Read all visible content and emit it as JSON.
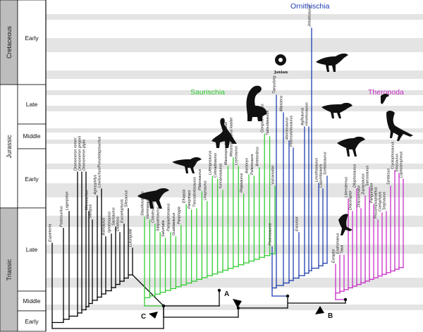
{
  "timescale": {
    "periods": [
      "Cretaceous",
      "Jurassic",
      "Triassic"
    ],
    "epochs": [
      "Early",
      "Late",
      "Middle",
      "Early",
      "Late",
      "Middle",
      "Early"
    ]
  },
  "clades": {
    "saurischia": "Saurischia",
    "ornithischia": "Ornithischia",
    "theropoda": "Theropoda"
  },
  "nodes": {
    "a": "A",
    "b": "B",
    "c": "C"
  },
  "image_text": {
    "jaxian": "Jaxian"
  },
  "colors": {
    "basal": "#000000",
    "saurischia": "#33cc33",
    "ornithischia": "#1f3fb0",
    "theropoda": "#c82ec8",
    "band": "#e4e4e4",
    "scale_gray": "#bdbdbd"
  },
  "taxa": {
    "basal": [
      "Euparkeria",
      "Postosuchus",
      "Lagerpeton",
      "Dromomeron romeri",
      "Dromomeron gregorii",
      "Dromomeron gigas",
      "Marasuchus",
      "Saltopus",
      "Agnosphitys",
      "Lewisuchus/Pseudolagosuchus",
      "Asilisaurus",
      "Ignotosaurus",
      "Sacisaurus",
      "Diodorus",
      "Eucoelophysis",
      "Silesaurus",
      "Lutungutali"
    ],
    "saurischia": [
      "Staurikosaurus",
      "Herrerasaurus",
      "Chindesaurus",
      "Sanjuansaurus",
      "Saturnalia",
      "Pampadromaeus",
      "Guaibasaurus",
      "Panphagia",
      "Efraasia",
      "Pantydraco",
      "Thecodontosaurus",
      "Plateosaurus",
      "Unaysaurus",
      "Lufengosaurus",
      "Coloradisaurus",
      "Yunnanosaurus",
      "Massospondylus carinatus",
      "Massospondylus kaalae",
      "Leyesaurus",
      "Riojasaurus",
      "Aardonyx",
      "Pulanesaura",
      "Antetonitrus",
      "Gongxianosaurus",
      "Tazoudasaurus",
      "Vulcanodon"
    ],
    "ornithischia": [
      "Pisanosaurus",
      "Tianyulong",
      "Manidens",
      "Abrictosaurus",
      "Heterodontosaurus",
      "Eocursor",
      "Agilisaurus",
      "Hexinlusaurus",
      "Jeholosaurus",
      "Lesothosaurus",
      "Laquintasaura",
      "Scelidosaurus"
    ],
    "theropoda": [
      "Eoraptor",
      "Eodromaeus",
      "Tawa",
      "Liliensternus",
      "Dracoraptor",
      "Dilophosaurus",
      "Dracovenator",
      "Zupaysaurus",
      "Sarcosaurus",
      "Panguraptor",
      "Procompsognathus",
      "Coelophysis",
      "Segisaurus",
      "Syntarsus",
      "Cryolophosaurus",
      "Sinosaurus",
      "Lophostropheus"
    ]
  },
  "silhouettes": [
    "sauropodomorph-silhouette",
    "sauropodomorph-silhouette",
    "herrerasaurid-silhouette",
    "theropod-silhouette",
    "ornithopod-silhouette",
    "ornithischian-silhouette",
    "ornithischian-silhouette",
    "theropod-silhouette",
    "theropod-silhouette",
    "theropod-silhouette",
    "theropod-silhouette",
    "ornithischian-skull-silhouette"
  ]
}
